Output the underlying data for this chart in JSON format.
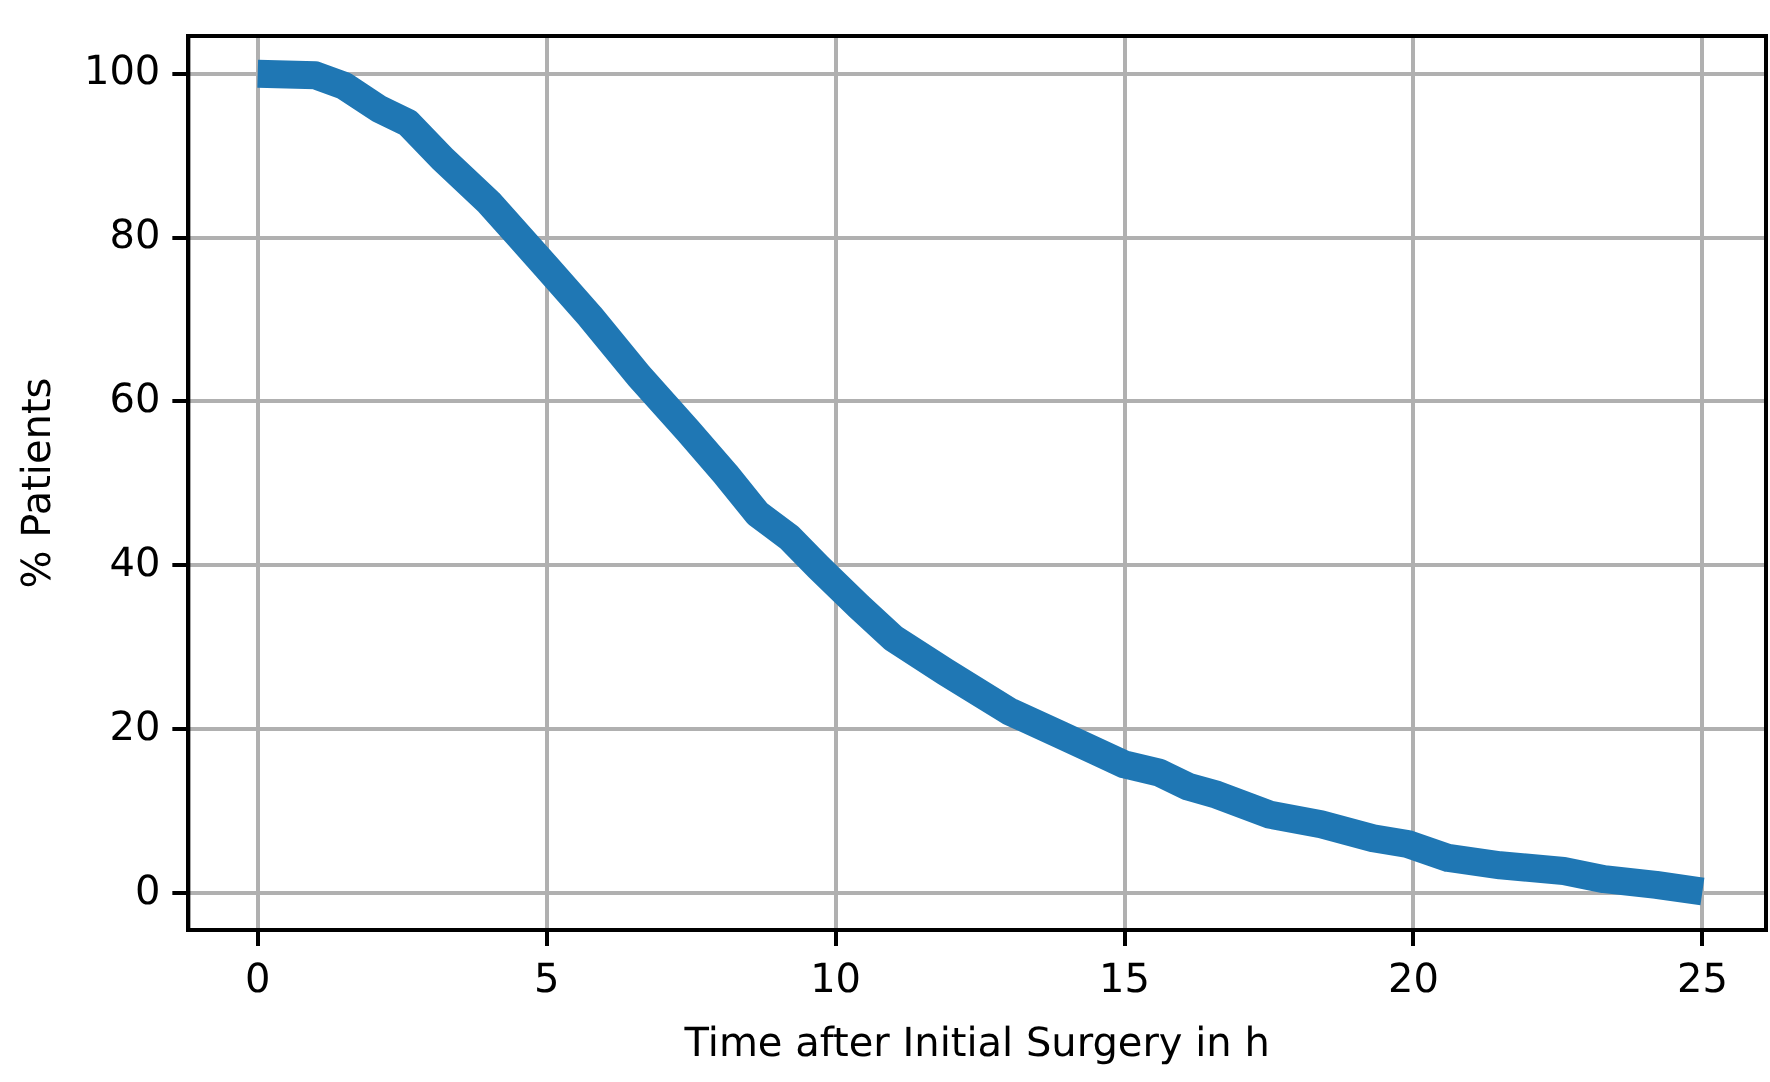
{
  "chart_data": {
    "type": "line",
    "xlabel": "Time after Initial Surgery in h",
    "ylabel": "% Patients",
    "x": [
      0,
      1.0,
      1.5,
      2.1,
      2.6,
      3.2,
      4.0,
      5.0,
      5.75,
      6.6,
      7.45,
      8.1,
      8.65,
      9.2,
      9.7,
      10.4,
      11.0,
      11.9,
      13.0,
      13.9,
      15.0,
      15.6,
      16.1,
      16.6,
      17.5,
      18.4,
      19.3,
      19.9,
      20.6,
      21.5,
      22.6,
      23.3,
      24.2,
      25.0
    ],
    "series": [
      {
        "color": "#1f77b4",
        "values": [
          100,
          99.8,
          98.5,
          95.7,
          94,
          89.6,
          84.3,
          76.4,
          70.4,
          63.1,
          56.4,
          51.1,
          46.3,
          43.4,
          39.8,
          35,
          31.1,
          27,
          22.2,
          19.3,
          15.7,
          14.7,
          13,
          12,
          9.6,
          8.4,
          6.7,
          6,
          4.3,
          3.4,
          2.7,
          1.7,
          1,
          0.2
        ]
      }
    ],
    "xlim": [
      -1.2,
      26.1
    ],
    "ylim": [
      -4.5,
      104.6
    ],
    "xticks": [
      0,
      5,
      10,
      15,
      20,
      25
    ],
    "yticks": [
      0,
      20,
      40,
      60,
      80,
      100
    ],
    "grid": true,
    "legend": false,
    "marker": "none",
    "line_style": "solid"
  }
}
